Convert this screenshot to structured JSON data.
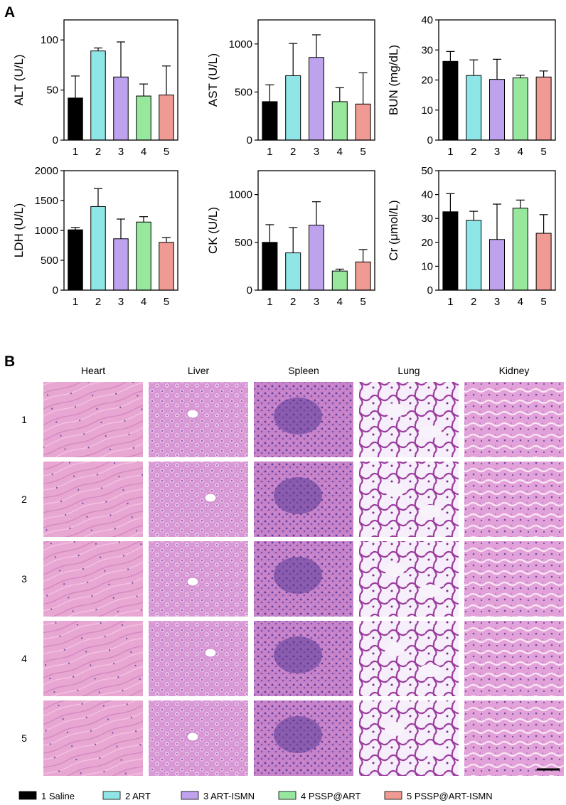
{
  "panels": {
    "a_label": "A",
    "b_label": "B"
  },
  "group_colors": [
    "#000000",
    "#8fe6e6",
    "#bfa2ee",
    "#97e89d",
    "#ef9a93"
  ],
  "chart_data": [
    {
      "type": "bar",
      "categories": [
        "1",
        "2",
        "3",
        "4",
        "5"
      ],
      "values": [
        42,
        89,
        63,
        44,
        45
      ],
      "errors": [
        22,
        3,
        35,
        12,
        29
      ],
      "ylabel": "ALT (U/L)",
      "ylim": [
        0,
        120
      ],
      "yticks": [
        0,
        50,
        100
      ]
    },
    {
      "type": "bar",
      "categories": [
        "1",
        "2",
        "3",
        "4",
        "5"
      ],
      "values": [
        400,
        670,
        860,
        400,
        375
      ],
      "errors": [
        175,
        335,
        235,
        145,
        325
      ],
      "ylabel": "AST (U/L)",
      "ylim": [
        0,
        1250
      ],
      "yticks": [
        0,
        500,
        1000
      ]
    },
    {
      "type": "bar",
      "categories": [
        "1",
        "2",
        "3",
        "4",
        "5"
      ],
      "values": [
        26.2,
        21.5,
        20.2,
        20.7,
        21
      ],
      "errors": [
        3.3,
        5.2,
        6.7,
        0.9,
        2
      ],
      "ylabel": "BUN (mg/dL)",
      "ylim": [
        0,
        40
      ],
      "yticks": [
        0,
        10,
        20,
        30,
        40
      ]
    },
    {
      "type": "bar",
      "categories": [
        "1",
        "2",
        "3",
        "4",
        "5"
      ],
      "values": [
        1010,
        1400,
        860,
        1140,
        800
      ],
      "errors": [
        40,
        300,
        330,
        90,
        80
      ],
      "ylabel": "LDH (U/L)",
      "ylim": [
        0,
        2000
      ],
      "yticks": [
        0,
        500,
        1000,
        1500,
        2000
      ]
    },
    {
      "type": "bar",
      "categories": [
        "1",
        "2",
        "3",
        "4",
        "5"
      ],
      "values": [
        500,
        390,
        680,
        200,
        295
      ],
      "errors": [
        185,
        265,
        245,
        20,
        130
      ],
      "ylabel": "CK (U/L)",
      "ylim": [
        0,
        1250
      ],
      "yticks": [
        0,
        500,
        1000
      ]
    },
    {
      "type": "bar",
      "categories": [
        "1",
        "2",
        "3",
        "4",
        "5"
      ],
      "values": [
        32.8,
        29.2,
        21.2,
        34.3,
        23.8
      ],
      "errors": [
        7.6,
        3.8,
        14.8,
        3.4,
        7.8
      ],
      "ylabel": "Cr (μmol/L)",
      "ylim": [
        0,
        50
      ],
      "yticks": [
        0,
        10,
        20,
        30,
        40,
        50
      ]
    }
  ],
  "histology": {
    "columns": [
      "Heart",
      "Liver",
      "Spleen",
      "Lung",
      "Kidney"
    ],
    "rows": [
      "1",
      "2",
      "3",
      "4",
      "5"
    ]
  },
  "legend": [
    {
      "label": "1 Saline",
      "color": "#000000"
    },
    {
      "label": "2 ART",
      "color": "#8fe6e6"
    },
    {
      "label": "3 ART-ISMN",
      "color": "#bfa2ee"
    },
    {
      "label": "4 PSSP@ART",
      "color": "#97e89d"
    },
    {
      "label": "5 PSSP@ART-ISMN",
      "color": "#ef9a93"
    }
  ]
}
